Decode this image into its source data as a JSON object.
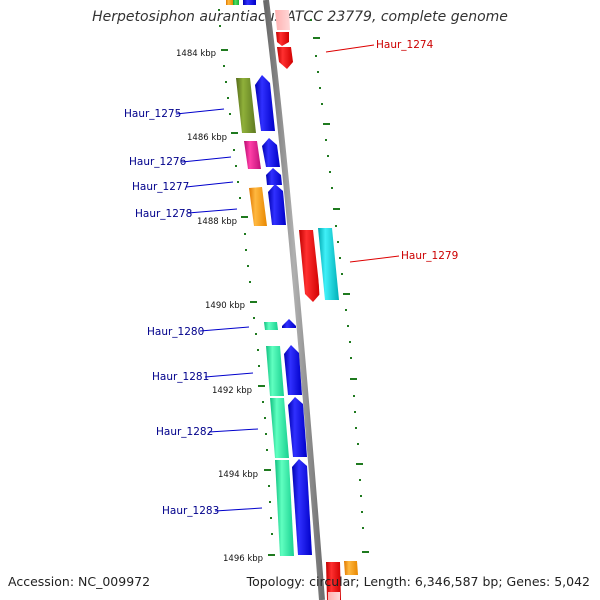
{
  "title": "Herpetosiphon aurantiacus ATCC 23779, complete genome",
  "footer": {
    "accession": "Accession: NC_009972",
    "topology": "Topology: circular; Length: 6,346,587 bp; Genes: 5,042"
  },
  "ticks": [
    "1484 kbp",
    "1486 kbp",
    "1488 kbp",
    "1490 kbp",
    "1492 kbp",
    "1494 kbp",
    "1496 kbp"
  ],
  "genes_reverse": [
    "Haur_1275",
    "Haur_1276",
    "Haur_1277",
    "Haur_1278",
    "Haur_1280",
    "Haur_1281",
    "Haur_1282",
    "Haur_1283"
  ],
  "genes_forward": [
    "Haur_1274",
    "Haur_1279"
  ],
  "colors": {
    "backbone": "#8a8a8a",
    "tick_marks": "#1f7a1f",
    "reverse_label": "#00008b",
    "forward_label": "#cc0000",
    "cds_blue": "#0000e6",
    "cds_red": "#ee0000",
    "cds_cyan": "#00c8d0",
    "cds_olive": "#6b8e23",
    "cds_magenta": "#e0148c",
    "cds_orange": "#ff9900",
    "cds_spring": "#1de9a0"
  }
}
